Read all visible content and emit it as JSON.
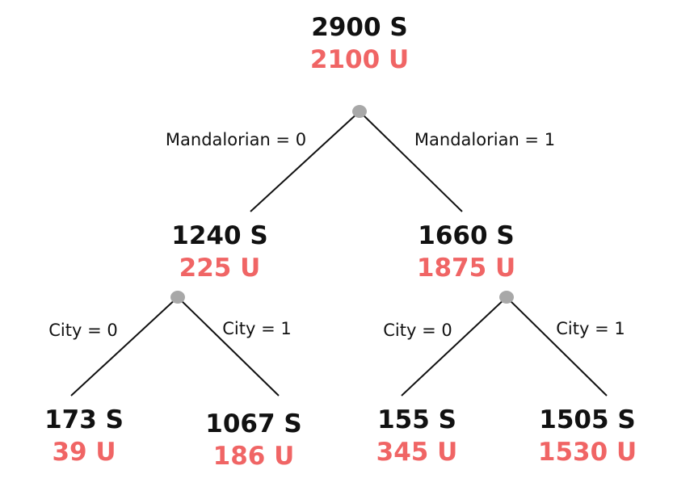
{
  "colors": {
    "selected": "#111111",
    "unselected": "#f06565",
    "split_point": "#a8a8a8",
    "edge": "#111111"
  },
  "root": {
    "s": "2900 S",
    "u": "2100 U"
  },
  "splits": {
    "root": {
      "left": "Mandalorian = 0",
      "right": "Mandalorian = 1"
    },
    "left": {
      "left": "City = 0",
      "right": "City = 1"
    },
    "right": {
      "left": "City = 0",
      "right": "City = 1"
    }
  },
  "level1": {
    "left": {
      "s": "1240 S",
      "u": "225 U"
    },
    "right": {
      "s": "1660 S",
      "u": "1875 U"
    }
  },
  "leaves": [
    {
      "s": "173 S",
      "u": "39 U"
    },
    {
      "s": "1067 S",
      "u": "186 U"
    },
    {
      "s": "155 S",
      "u": "345 U"
    },
    {
      "s": "1505 S",
      "u": "1530 U"
    }
  ]
}
